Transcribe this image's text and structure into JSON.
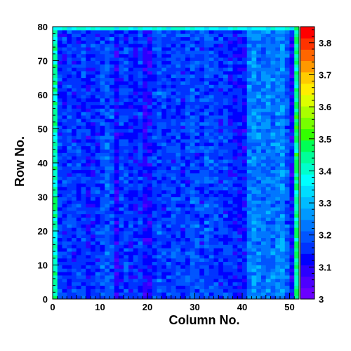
{
  "chart_data": {
    "type": "heatmap",
    "title": "",
    "xlabel": "Column No.",
    "ylabel": "Row No.",
    "xlim": [
      0,
      52
    ],
    "ylim": [
      0,
      80
    ],
    "xbins": 52,
    "ybins": 80,
    "x_ticks": [
      0,
      10,
      20,
      30,
      40,
      50
    ],
    "y_ticks": [
      0,
      10,
      20,
      30,
      40,
      50,
      60,
      70,
      80
    ],
    "colorbar": {
      "min": 3.0,
      "max": 3.85,
      "ticks": [
        3,
        3.1,
        3.2,
        3.3,
        3.4,
        3.5,
        3.6,
        3.7,
        3.8
      ],
      "tick_labels": [
        "3",
        "3.1",
        "3.2",
        "3.3",
        "3.4",
        "3.5",
        "3.6",
        "3.7",
        "3.8"
      ],
      "colors": [
        "#6a00ff",
        "#4d00ff",
        "#2b00ff",
        "#0000ff",
        "#0033ff",
        "#0055ff",
        "#0077ff",
        "#0099ff",
        "#00bbff",
        "#00ddff",
        "#00ffff",
        "#00ffcc",
        "#00ff99",
        "#00ff55",
        "#33ff00",
        "#77ff00",
        "#aaff00",
        "#ddff00",
        "#ffee00",
        "#ffcc00",
        "#ff9900",
        "#ff6600",
        "#ff3300",
        "#ff0000"
      ]
    },
    "column_profile": [
      {
        "col": 0,
        "mean": 3.42
      },
      {
        "col": 1,
        "mean": 3.16
      },
      {
        "col": 2,
        "mean": 3.16
      },
      {
        "col": 3,
        "mean": 3.17
      },
      {
        "col": 4,
        "mean": 3.15
      },
      {
        "col": 5,
        "mean": 3.16
      },
      {
        "col": 6,
        "mean": 3.17
      },
      {
        "col": 7,
        "mean": 3.14
      },
      {
        "col": 8,
        "mean": 3.15
      },
      {
        "col": 9,
        "mean": 3.16
      },
      {
        "col": 10,
        "mean": 3.18
      },
      {
        "col": 11,
        "mean": 3.2
      },
      {
        "col": 12,
        "mean": 3.18
      },
      {
        "col": 13,
        "mean": 3.11
      },
      {
        "col": 14,
        "mean": 3.16
      },
      {
        "col": 15,
        "mean": 3.17
      },
      {
        "col": 16,
        "mean": 3.15
      },
      {
        "col": 17,
        "mean": 3.14
      },
      {
        "col": 18,
        "mean": 3.16
      },
      {
        "col": 19,
        "mean": 3.12
      },
      {
        "col": 20,
        "mean": 3.12
      },
      {
        "col": 21,
        "mean": 3.17
      },
      {
        "col": 22,
        "mean": 3.18
      },
      {
        "col": 23,
        "mean": 3.17
      },
      {
        "col": 24,
        "mean": 3.16
      },
      {
        "col": 25,
        "mean": 3.17
      },
      {
        "col": 26,
        "mean": 3.17
      },
      {
        "col": 27,
        "mean": 3.16
      },
      {
        "col": 28,
        "mean": 3.17
      },
      {
        "col": 29,
        "mean": 3.19
      },
      {
        "col": 30,
        "mean": 3.18
      },
      {
        "col": 31,
        "mean": 3.17
      },
      {
        "col": 32,
        "mean": 3.19
      },
      {
        "col": 33,
        "mean": 3.18
      },
      {
        "col": 34,
        "mean": 3.17
      },
      {
        "col": 35,
        "mean": 3.16
      },
      {
        "col": 36,
        "mean": 3.17
      },
      {
        "col": 37,
        "mean": 3.15
      },
      {
        "col": 38,
        "mean": 3.14
      },
      {
        "col": 39,
        "mean": 3.13
      },
      {
        "col": 40,
        "mean": 3.13
      },
      {
        "col": 41,
        "mean": 3.24
      },
      {
        "col": 42,
        "mean": 3.25
      },
      {
        "col": 43,
        "mean": 3.23
      },
      {
        "col": 44,
        "mean": 3.22
      },
      {
        "col": 45,
        "mean": 3.24
      },
      {
        "col": 46,
        "mean": 3.22
      },
      {
        "col": 47,
        "mean": 3.24
      },
      {
        "col": 48,
        "mean": 3.26
      },
      {
        "col": 49,
        "mean": 3.2
      },
      {
        "col": 50,
        "mean": 3.12
      },
      {
        "col": 51,
        "mean": 3.44
      }
    ],
    "cell_noise": 0.035,
    "top_row_mean": 3.38
  }
}
